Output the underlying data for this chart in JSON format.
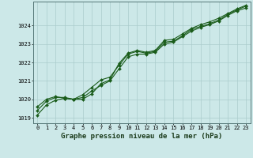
{
  "background_color": "#cce8e8",
  "grid_color": "#aacccc",
  "line_color": "#1a5c1a",
  "title": "Graphe pression niveau de la mer (hPa)",
  "xlim": [
    -0.5,
    23.5
  ],
  "ylim": [
    1018.7,
    1025.3
  ],
  "yticks": [
    1019,
    1020,
    1021,
    1022,
    1023,
    1024
  ],
  "xticks": [
    0,
    1,
    2,
    3,
    4,
    5,
    6,
    7,
    8,
    9,
    10,
    11,
    12,
    13,
    14,
    15,
    16,
    17,
    18,
    19,
    20,
    21,
    22,
    23
  ],
  "series1_x": [
    0,
    1,
    2,
    3,
    4,
    5,
    6,
    7,
    8,
    9,
    10,
    11,
    12,
    13,
    14,
    15,
    16,
    17,
    18,
    19,
    20,
    21,
    22,
    23
  ],
  "series1_y": [
    1019.4,
    1019.9,
    1020.1,
    1020.1,
    1020.0,
    1020.25,
    1020.65,
    1021.05,
    1021.2,
    1021.85,
    1022.45,
    1022.6,
    1022.5,
    1022.6,
    1023.1,
    1023.15,
    1023.45,
    1023.8,
    1023.95,
    1024.1,
    1024.3,
    1024.6,
    1024.85,
    1025.05
  ],
  "series2_x": [
    0,
    1,
    2,
    3,
    4,
    5,
    6,
    7,
    8,
    9,
    10,
    11,
    12,
    13,
    14,
    15,
    16,
    17,
    18,
    19,
    20,
    21,
    22,
    23
  ],
  "series2_y": [
    1019.15,
    1019.7,
    1019.95,
    1020.05,
    1020.0,
    1020.1,
    1020.45,
    1020.75,
    1021.0,
    1021.65,
    1022.3,
    1022.45,
    1022.45,
    1022.55,
    1023.0,
    1023.1,
    1023.4,
    1023.7,
    1023.9,
    1024.05,
    1024.25,
    1024.55,
    1024.8,
    1024.95
  ],
  "series3_x": [
    0,
    1,
    2,
    3,
    4,
    5,
    6,
    7,
    8,
    9,
    10,
    11,
    12,
    13,
    14,
    15,
    16,
    17,
    18,
    19,
    20,
    21,
    22,
    23
  ],
  "series3_y": [
    1019.6,
    1020.0,
    1020.15,
    1020.05,
    1020.0,
    1020.0,
    1020.3,
    1020.85,
    1021.05,
    1021.95,
    1022.5,
    1022.65,
    1022.55,
    1022.65,
    1023.2,
    1023.25,
    1023.55,
    1023.85,
    1024.05,
    1024.2,
    1024.4,
    1024.65,
    1024.9,
    1025.1
  ],
  "marker": "D",
  "markersize": 2.0,
  "linewidth": 0.8,
  "title_fontsize": 6.5,
  "tick_fontsize": 5.0
}
